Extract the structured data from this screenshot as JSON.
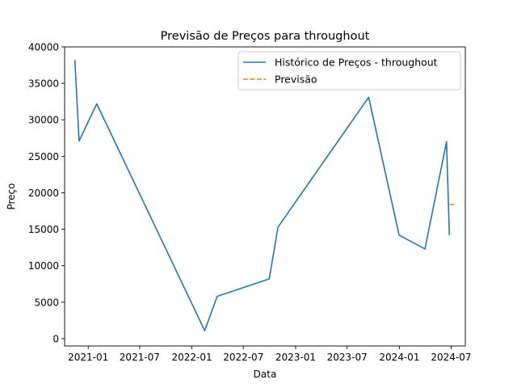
{
  "chart_data": {
    "type": "line",
    "title": "Previsão de Preços para throughout",
    "xlabel": "Data",
    "ylabel": "Preço",
    "xlim": [
      "2020-10-10",
      "2024-08-20"
    ],
    "ylim": [
      -1000,
      40000
    ],
    "x_ticks": [
      {
        "date": "2021-01-01",
        "label": "2021-01"
      },
      {
        "date": "2021-07-01",
        "label": "2021-07"
      },
      {
        "date": "2022-01-01",
        "label": "2022-01"
      },
      {
        "date": "2022-07-01",
        "label": "2022-07"
      },
      {
        "date": "2023-01-01",
        "label": "2023-01"
      },
      {
        "date": "2023-07-01",
        "label": "2023-07"
      },
      {
        "date": "2024-01-01",
        "label": "2024-01"
      },
      {
        "date": "2024-07-01",
        "label": "2024-07"
      }
    ],
    "y_ticks": [
      0,
      5000,
      10000,
      15000,
      20000,
      25000,
      30000,
      35000,
      40000
    ],
    "grid": false,
    "legend_position": "top-right",
    "series": [
      {
        "name": "Histórico de Preços - throughout",
        "color": "#1f77b4",
        "style": "solid",
        "points": [
          {
            "x": "2020-11-15",
            "y": 38200
          },
          {
            "x": "2020-11-30",
            "y": 27100
          },
          {
            "x": "2021-01-31",
            "y": 32200
          },
          {
            "x": "2022-02-15",
            "y": 1100
          },
          {
            "x": "2022-03-31",
            "y": 5800
          },
          {
            "x": "2022-09-30",
            "y": 8200
          },
          {
            "x": "2022-10-31",
            "y": 15300
          },
          {
            "x": "2023-09-15",
            "y": 33100
          },
          {
            "x": "2023-12-31",
            "y": 14200
          },
          {
            "x": "2024-03-31",
            "y": 12300
          },
          {
            "x": "2024-06-15",
            "y": 27000
          },
          {
            "x": "2024-06-25",
            "y": 14200
          }
        ]
      },
      {
        "name": "Previsão",
        "color": "#ff7f0e",
        "style": "dashed",
        "points": [
          {
            "x": "2024-06-25",
            "y": 18400
          },
          {
            "x": "2024-07-15",
            "y": 18400
          }
        ]
      }
    ]
  }
}
